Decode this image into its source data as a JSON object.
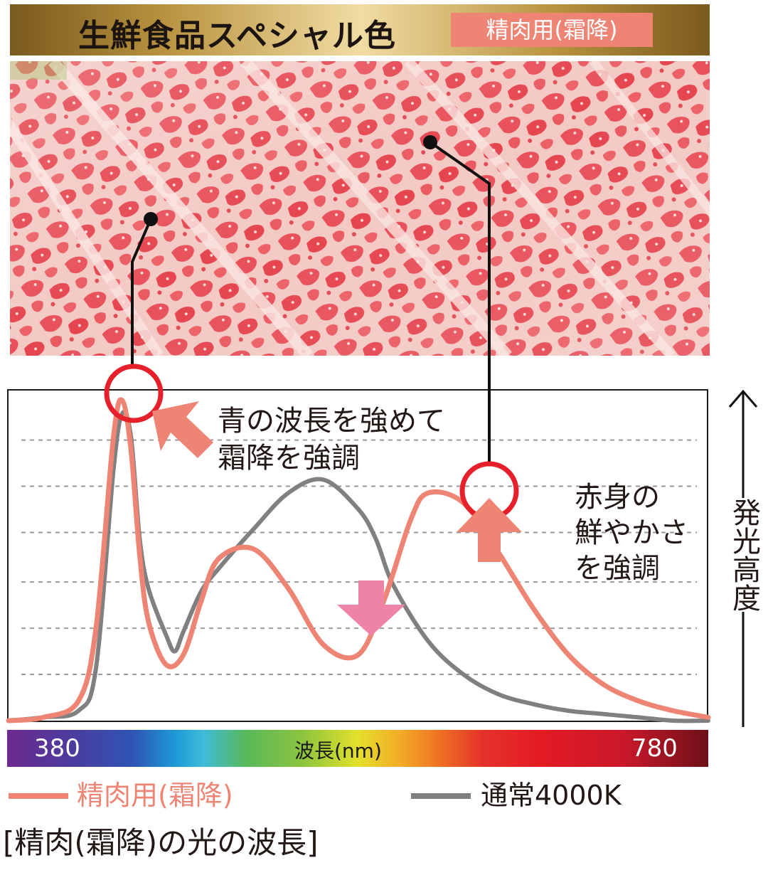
{
  "header": {
    "title": "生鮮食品スペシャル色",
    "badge": "精肉用(霜降)"
  },
  "annotations": {
    "blue_line1": "青の波長を強めて",
    "blue_line2": "霜降を強調",
    "red_line1": "赤身の",
    "red_line2": "鮮やかさ",
    "red_line3": "を強調"
  },
  "y_axis_label": "発光高度",
  "spectrum": {
    "start": "380",
    "center": "波長(nm)",
    "end": "780"
  },
  "legend": {
    "series1": "精肉用(霜降)",
    "series2": "通常4000K"
  },
  "caption": "[精肉(霜降)の光の波長]",
  "colors": {
    "salmon": "#ee8574",
    "gray": "#808080",
    "pink_arrow": "#ee83a5",
    "highlight_ring": "#e6212c"
  },
  "chart_data": {
    "type": "line",
    "title": "",
    "xlabel": "波長(nm)",
    "ylabel": "発光高度",
    "xlim": [
      380,
      780
    ],
    "ylim": [
      0,
      1
    ],
    "grid": "horizontal dashed",
    "legend": "bottom",
    "series": [
      {
        "name": "精肉用(霜降)",
        "color": "#ee8574",
        "x": [
          380,
          400,
          420,
          430,
          440,
          445,
          450,
          455,
          460,
          470,
          480,
          490,
          500,
          520,
          540,
          560,
          580,
          595,
          610,
          620,
          640,
          660,
          680,
          700,
          720,
          740,
          760,
          780
        ],
        "y": [
          0.0,
          0.01,
          0.06,
          0.28,
          0.86,
          0.97,
          0.82,
          0.5,
          0.3,
          0.17,
          0.2,
          0.36,
          0.49,
          0.52,
          0.4,
          0.23,
          0.2,
          0.37,
          0.61,
          0.69,
          0.66,
          0.51,
          0.34,
          0.2,
          0.11,
          0.06,
          0.03,
          0.01
        ]
      },
      {
        "name": "通常4000K",
        "color": "#808080",
        "x": [
          380,
          400,
          420,
          430,
          440,
          445,
          450,
          455,
          460,
          470,
          475,
          480,
          490,
          500,
          520,
          540,
          560,
          580,
          590,
          600,
          620,
          640,
          660,
          680,
          700,
          720,
          740,
          760,
          780
        ],
        "y": [
          0.0,
          0.01,
          0.03,
          0.16,
          0.76,
          0.93,
          0.86,
          0.55,
          0.4,
          0.26,
          0.21,
          0.27,
          0.39,
          0.46,
          0.58,
          0.69,
          0.73,
          0.64,
          0.55,
          0.41,
          0.24,
          0.14,
          0.08,
          0.05,
          0.03,
          0.02,
          0.01,
          0.0,
          0.0
        ]
      }
    ]
  }
}
